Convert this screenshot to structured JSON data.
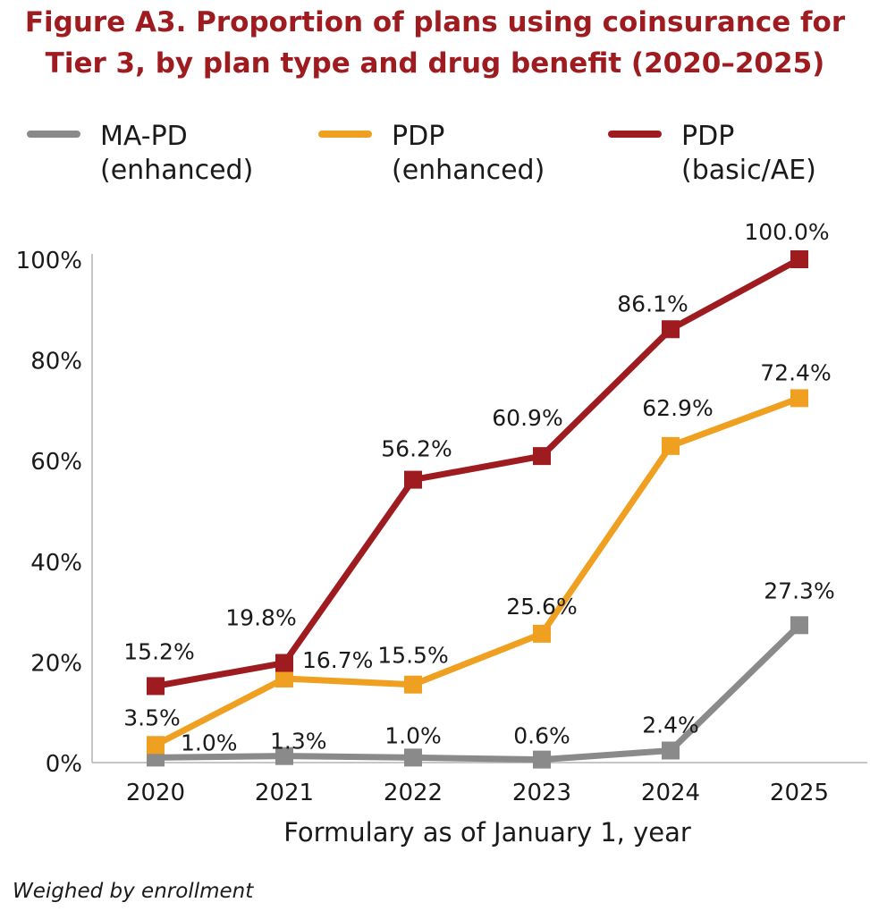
{
  "title": {
    "line1": "Figure A3. Proportion of plans using coinsurance for",
    "line2": "Tier 3, by plan type and drug benefit (2020–2025)"
  },
  "legend": [
    {
      "line1": "MA-PD",
      "line2": "(enhanced)",
      "color": "#8a8a8a"
    },
    {
      "line1": "PDP",
      "line2": "(enhanced)",
      "color": "#f0a020"
    },
    {
      "line1": "PDP",
      "line2": "(basic/AE)",
      "color": "#9e1b20"
    }
  ],
  "note": "Weighed by enrollment",
  "chart_data": {
    "type": "line",
    "title": "Figure A3. Proportion of plans using coinsurance for Tier 3, by plan type and drug benefit (2020–2025)",
    "xlabel": "Formulary as of January 1, year",
    "ylabel": "",
    "categories": [
      "2020",
      "2021",
      "2022",
      "2023",
      "2024",
      "2025"
    ],
    "ylim": [
      0,
      100
    ],
    "yticks": [
      "0%",
      "20%",
      "40%",
      "60%",
      "80%",
      "100%"
    ],
    "grid": false,
    "legend_position": "top",
    "series": [
      {
        "name": "MA-PD (enhanced)",
        "color": "#8a8a8a",
        "values": [
          1.0,
          1.3,
          1.0,
          0.6,
          2.4,
          27.3
        ],
        "labels": [
          "1.0%",
          "1.3%",
          "1.0%",
          "0.6%",
          "2.4%",
          "27.3%"
        ]
      },
      {
        "name": "PDP (enhanced)",
        "color": "#f0a020",
        "values": [
          3.5,
          16.7,
          15.5,
          25.6,
          62.9,
          72.4
        ],
        "labels": [
          "3.5%",
          "16.7%",
          "15.5%",
          "25.6%",
          "62.9%",
          "72.4%"
        ]
      },
      {
        "name": "PDP (basic/AE)",
        "color": "#9e1b20",
        "values": [
          15.2,
          19.8,
          56.2,
          60.9,
          86.1,
          100.0
        ],
        "labels": [
          "15.2%",
          "19.8%",
          "56.2%",
          "60.9%",
          "86.1%",
          "100.0%"
        ]
      }
    ]
  }
}
